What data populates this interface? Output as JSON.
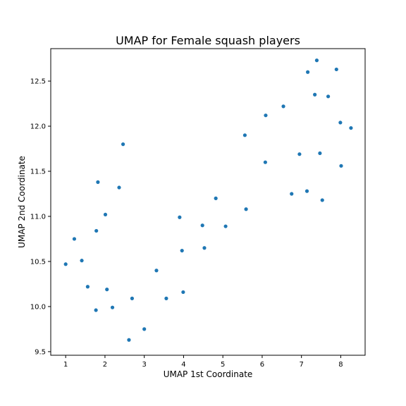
{
  "chart_data": {
    "type": "scatter",
    "title": "UMAP for Female squash players",
    "xlabel": "UMAP 1st Coordinate",
    "ylabel": "UMAP 2nd Coordinate",
    "xlim": [
      0.62,
      8.62
    ],
    "ylim": [
      9.46,
      12.86
    ],
    "xticks": [
      1,
      2,
      3,
      4,
      5,
      6,
      7,
      8
    ],
    "yticks": [
      9.5,
      10.0,
      10.5,
      11.0,
      11.5,
      12.0,
      12.5
    ],
    "xtick_labels": [
      "1",
      "2",
      "3",
      "4",
      "5",
      "6",
      "7",
      "8"
    ],
    "ytick_labels": [
      "9.5",
      "10.0",
      "10.5",
      "11.0",
      "11.5",
      "12.0",
      "12.5"
    ],
    "grid": false,
    "legend": "none",
    "marker_color": "#1f77b4",
    "series": [
      {
        "x": [
          1.0,
          1.22,
          1.41,
          1.56,
          1.77,
          1.78,
          1.82,
          2.01,
          2.05,
          2.19,
          2.36,
          2.46,
          2.61,
          2.69,
          3.0,
          3.31,
          3.56,
          3.9,
          3.96,
          3.99,
          4.48,
          4.53,
          4.82,
          5.07,
          5.56,
          5.59,
          6.08,
          6.09,
          6.54,
          6.75,
          6.95,
          7.14,
          7.16,
          7.34,
          7.39,
          7.47,
          7.53,
          7.68,
          7.89,
          7.99,
          8.01,
          8.26
        ],
        "y": [
          10.47,
          10.75,
          10.51,
          10.22,
          9.96,
          10.84,
          11.38,
          11.02,
          10.19,
          9.99,
          11.32,
          11.8,
          9.63,
          10.09,
          9.75,
          10.4,
          10.09,
          10.99,
          10.62,
          10.16,
          10.9,
          10.65,
          11.2,
          10.89,
          11.9,
          11.08,
          11.6,
          12.12,
          12.22,
          11.25,
          11.69,
          11.28,
          12.6,
          12.35,
          12.73,
          11.7,
          11.18,
          12.33,
          12.63,
          12.04,
          11.56,
          11.98
        ]
      }
    ]
  }
}
